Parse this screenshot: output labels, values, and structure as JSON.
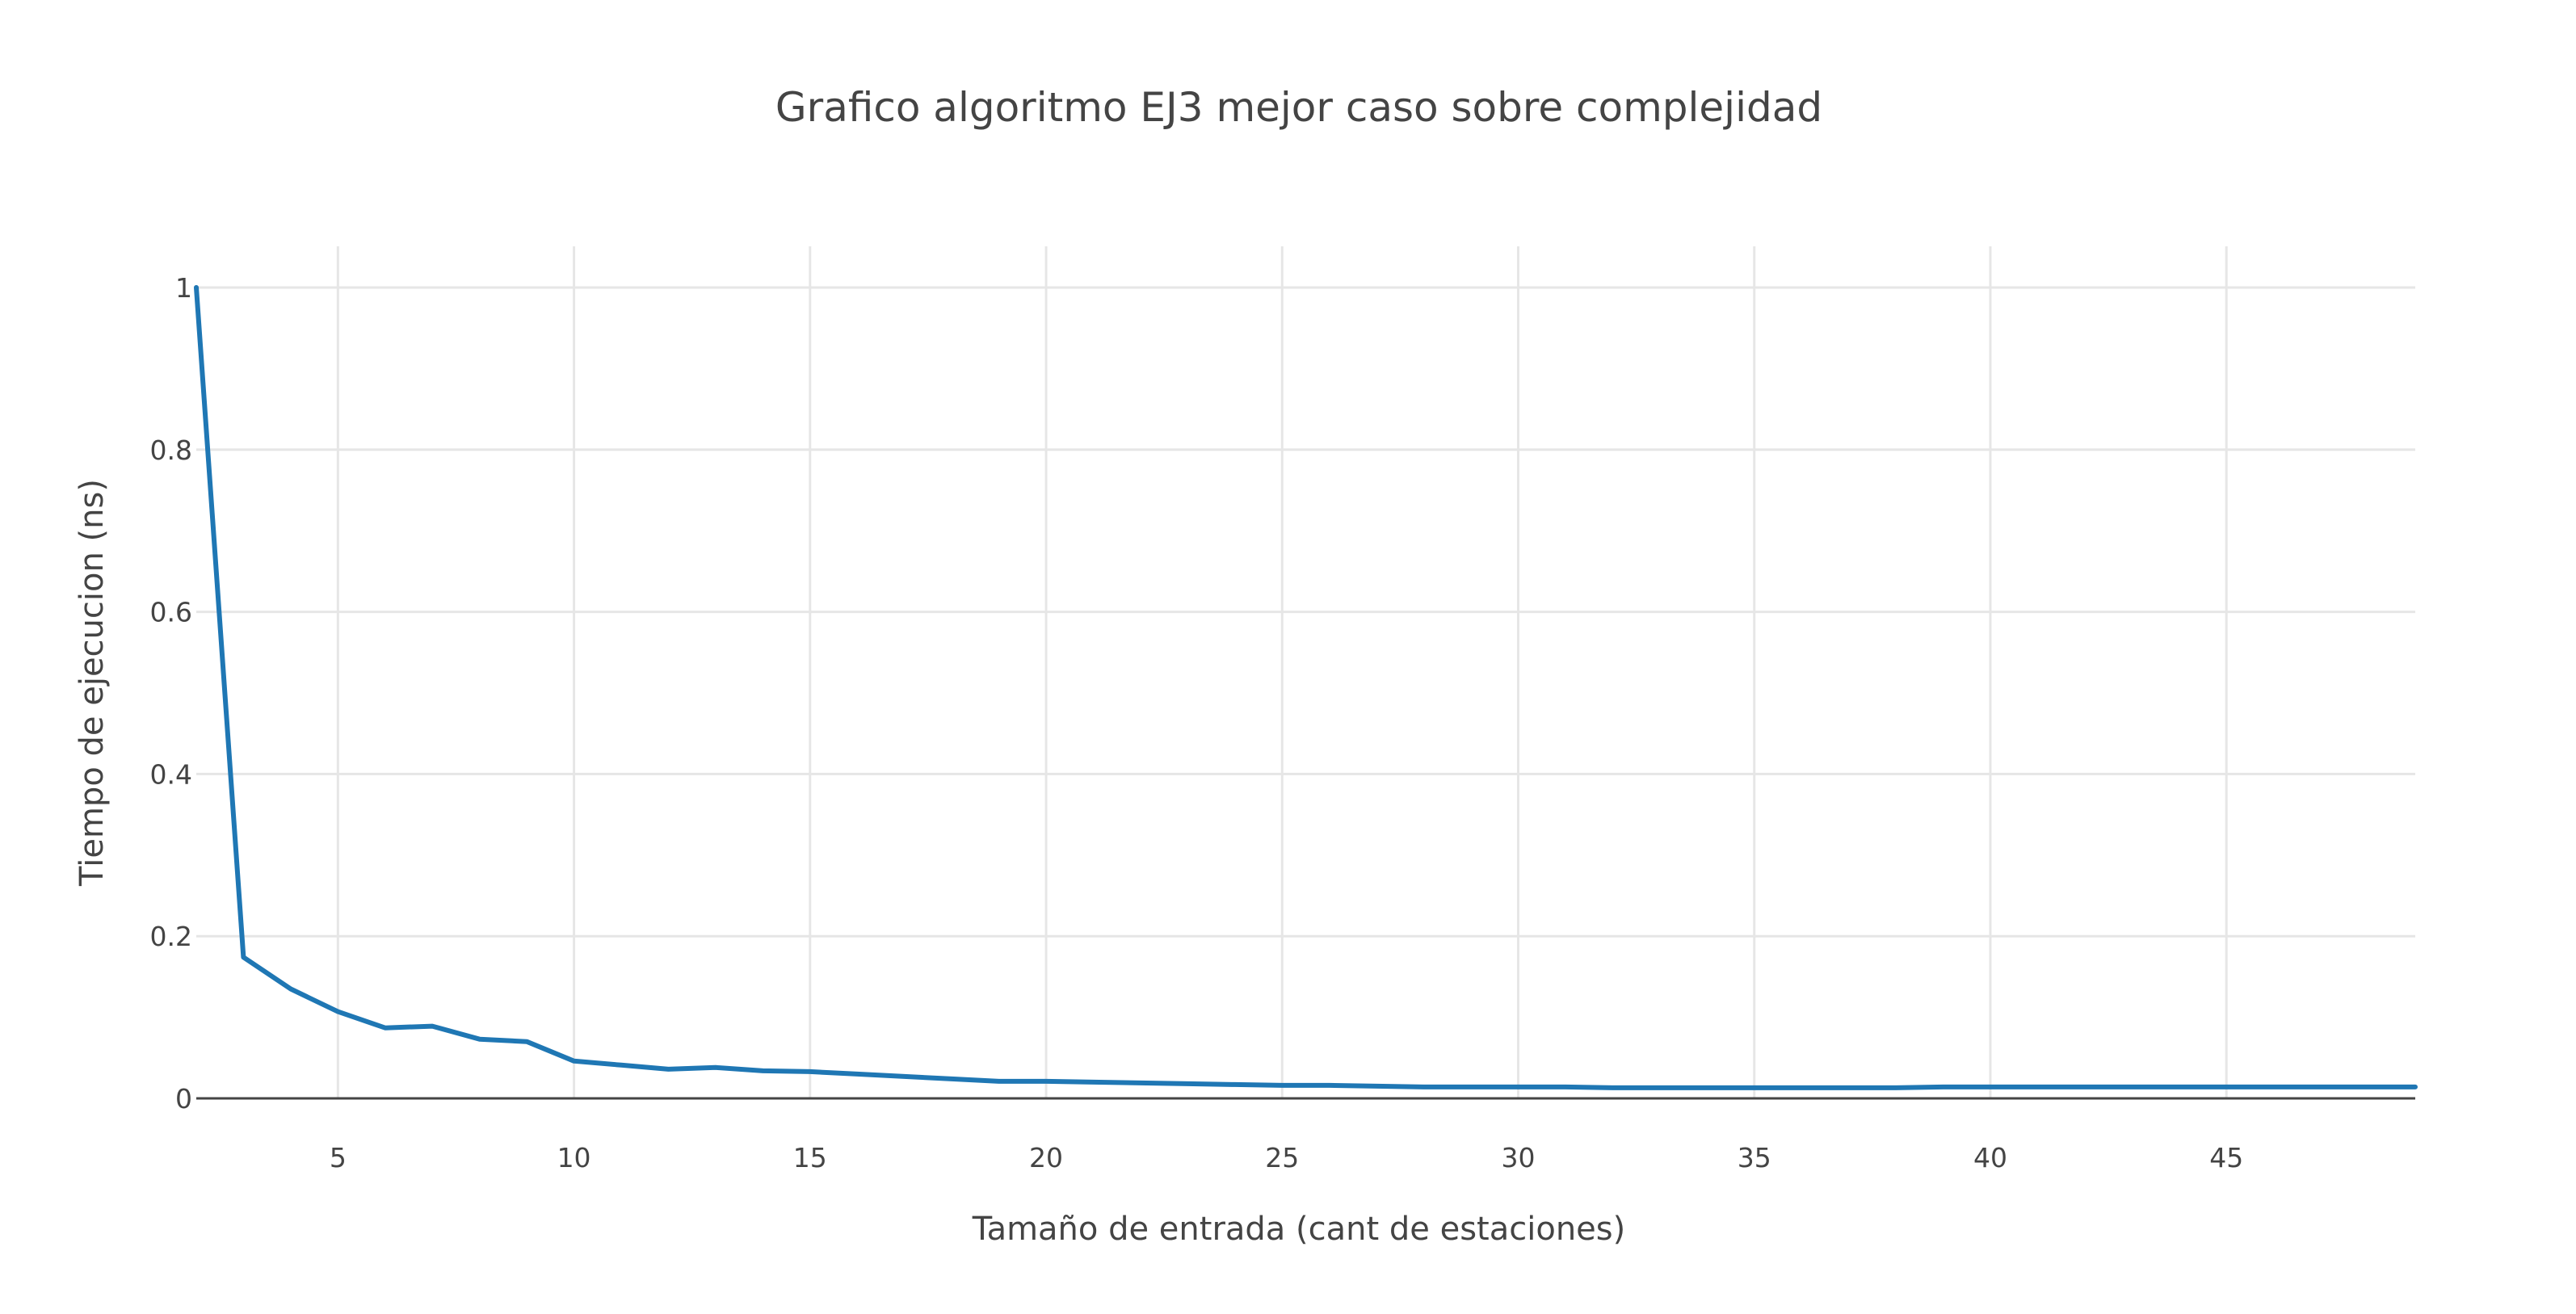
{
  "chart_data": {
    "type": "line",
    "title": "Grafico algoritmo EJ3 mejor caso sobre complejidad",
    "xlabel": "Tamaño de entrada (cant de estaciones)",
    "ylabel": "Tiempo de ejecucion (ns)",
    "xlim": [
      2,
      49
    ],
    "ylim": [
      0,
      1
    ],
    "x_ticks": [
      5,
      10,
      15,
      20,
      25,
      30,
      35,
      40,
      45
    ],
    "y_ticks": [
      0,
      0.2,
      0.4,
      0.6,
      0.8,
      1
    ],
    "y_tick_labels": [
      "0",
      "0.2",
      "0.4",
      "0.6",
      "0.8",
      "1"
    ],
    "grid": true,
    "legend": "none",
    "series": [
      {
        "color": "#1f77b4",
        "x": [
          2,
          3,
          4,
          5,
          6,
          7,
          8,
          9,
          10,
          11,
          12,
          13,
          14,
          15,
          16,
          17,
          18,
          19,
          20,
          21,
          22,
          23,
          24,
          25,
          26,
          27,
          28,
          29,
          30,
          31,
          32,
          33,
          34,
          35,
          36,
          37,
          38,
          39,
          40,
          41,
          42,
          43,
          44,
          45,
          46,
          47,
          48,
          49
        ],
        "y": [
          1.0,
          0.174,
          0.135,
          0.107,
          0.087,
          0.089,
          0.073,
          0.07,
          0.046,
          0.041,
          0.036,
          0.038,
          0.034,
          0.033,
          0.03,
          0.027,
          0.024,
          0.021,
          0.021,
          0.02,
          0.019,
          0.018,
          0.017,
          0.016,
          0.016,
          0.015,
          0.014,
          0.014,
          0.014,
          0.014,
          0.013,
          0.013,
          0.013,
          0.013,
          0.013,
          0.013,
          0.013,
          0.014,
          0.014,
          0.014,
          0.014,
          0.014,
          0.014,
          0.014,
          0.014,
          0.014,
          0.014,
          0.014
        ]
      }
    ]
  }
}
